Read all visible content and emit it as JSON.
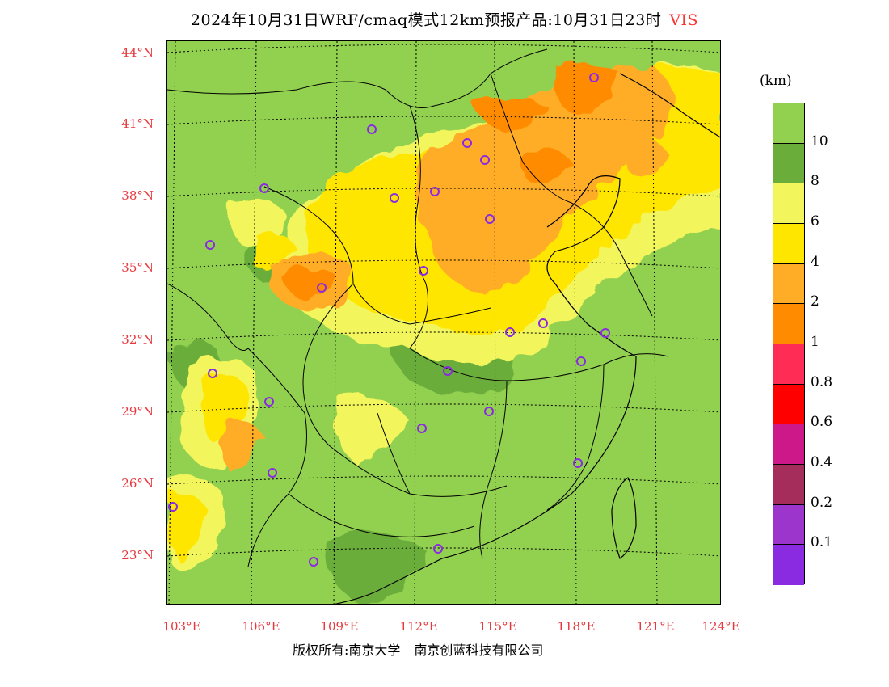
{
  "title": {
    "text": "2024年10月31日WRF/cmaq模式12km预报产品:10月31日23时",
    "variable": "VIS"
  },
  "axes": {
    "lat_labels": [
      "44°N",
      "41°N",
      "38°N",
      "35°N",
      "32°N",
      "29°N",
      "26°N",
      "23°N"
    ],
    "lon_labels": [
      "103°E",
      "106°E",
      "109°E",
      "112°E",
      "115°E",
      "118°E",
      "121°E",
      "124°E"
    ]
  },
  "legend": {
    "unit": "(km)",
    "labels": [
      "10",
      "8",
      "6",
      "4",
      "2",
      "1",
      "0.8",
      "0.6",
      "0.4",
      "0.2",
      "0.1"
    ],
    "colors": [
      "#92d050",
      "#6aad3a",
      "#f2f55c",
      "#ffe600",
      "#ffad26",
      "#ff8c00",
      "#ff2d55",
      "#ff0000",
      "#cc1888",
      "#a52d5c",
      "#9b35cc",
      "#8a2be2"
    ]
  },
  "colors": {
    "map_background": "#92d050",
    "marker": "#8a2be2",
    "grid": "#000000",
    "axis_label": "#e8383d"
  },
  "footer": {
    "left": "版权所有:南京大学",
    "right": "南京创蓝科技有限公司"
  }
}
